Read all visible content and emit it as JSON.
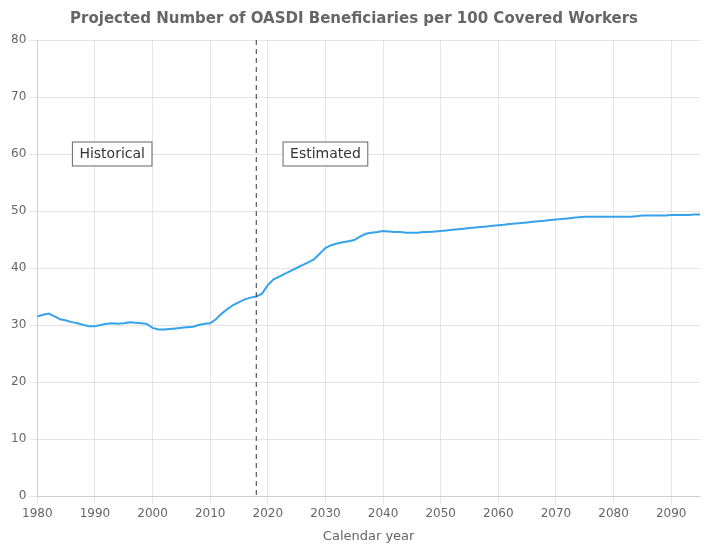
{
  "chart_data": {
    "type": "line",
    "title": "Projected Number of OASDI Beneficiaries per 100 Covered Workers",
    "xlabel": "Calendar year",
    "x": [
      1980,
      1981,
      1982,
      1983,
      1984,
      1985,
      1986,
      1987,
      1988,
      1989,
      1990,
      1991,
      1992,
      1993,
      1994,
      1995,
      1996,
      1997,
      1998,
      1999,
      2000,
      2001,
      2002,
      2003,
      2004,
      2005,
      2006,
      2007,
      2008,
      2009,
      2010,
      2011,
      2012,
      2013,
      2014,
      2015,
      2016,
      2017,
      2018,
      2019,
      2020,
      2021,
      2022,
      2023,
      2024,
      2025,
      2026,
      2027,
      2028,
      2029,
      2030,
      2031,
      2032,
      2033,
      2034,
      2035,
      2036,
      2037,
      2038,
      2039,
      2040,
      2041,
      2042,
      2043,
      2044,
      2045,
      2046,
      2047,
      2048,
      2049,
      2050,
      2051,
      2052,
      2053,
      2054,
      2055,
      2056,
      2057,
      2058,
      2059,
      2060,
      2061,
      2062,
      2063,
      2064,
      2065,
      2066,
      2067,
      2068,
      2069,
      2070,
      2071,
      2072,
      2073,
      2074,
      2075,
      2076,
      2077,
      2078,
      2079,
      2080,
      2081,
      2082,
      2083,
      2084,
      2085,
      2086,
      2087,
      2088,
      2089,
      2090,
      2091,
      2092,
      2093,
      2094,
      2095
    ],
    "values": [
      31.5,
      31.8,
      32.0,
      31.5,
      31.0,
      30.8,
      30.5,
      30.3,
      30.0,
      29.8,
      29.8,
      30.0,
      30.2,
      30.3,
      30.2,
      30.3,
      30.5,
      30.4,
      30.3,
      30.2,
      29.5,
      29.2,
      29.2,
      29.3,
      29.4,
      29.5,
      29.6,
      29.7,
      30.0,
      30.2,
      30.3,
      31.0,
      32.0,
      32.8,
      33.5,
      34.0,
      34.5,
      34.8,
      35.0,
      35.5,
      37.0,
      38.0,
      38.5,
      39.0,
      39.5,
      40.0,
      40.5,
      41.0,
      41.5,
      42.5,
      43.5,
      44.0,
      44.3,
      44.5,
      44.7,
      44.9,
      45.5,
      46.0,
      46.2,
      46.3,
      46.5,
      46.4,
      46.3,
      46.3,
      46.2,
      46.2,
      46.2,
      46.3,
      46.3,
      46.4,
      46.5,
      46.6,
      46.7,
      46.8,
      46.9,
      47.0,
      47.1,
      47.2,
      47.3,
      47.4,
      47.5,
      47.6,
      47.7,
      47.8,
      47.9,
      48.0,
      48.1,
      48.2,
      48.3,
      48.4,
      48.5,
      48.6,
      48.7,
      48.8,
      48.9,
      49.0,
      49.0,
      49.0,
      49.0,
      49.0,
      49.0,
      49.0,
      49.0,
      49.0,
      49.1,
      49.2,
      49.2,
      49.2,
      49.2,
      49.2,
      49.3,
      49.3,
      49.3,
      49.3,
      49.4,
      49.4
    ],
    "xlim": [
      1980,
      2095
    ],
    "ylim": [
      0,
      80
    ],
    "xticks": [
      1980,
      1990,
      2000,
      2010,
      2020,
      2030,
      2040,
      2050,
      2060,
      2070,
      2080,
      2090
    ],
    "yticks": [
      0,
      10,
      20,
      30,
      40,
      50,
      60,
      70,
      80
    ],
    "grid": true,
    "annotations": [
      {
        "text": "Historical",
        "x": 1993,
        "y": 60
      },
      {
        "text": "Estimated",
        "x": 2030,
        "y": 60
      }
    ],
    "divider_x": 2018
  }
}
